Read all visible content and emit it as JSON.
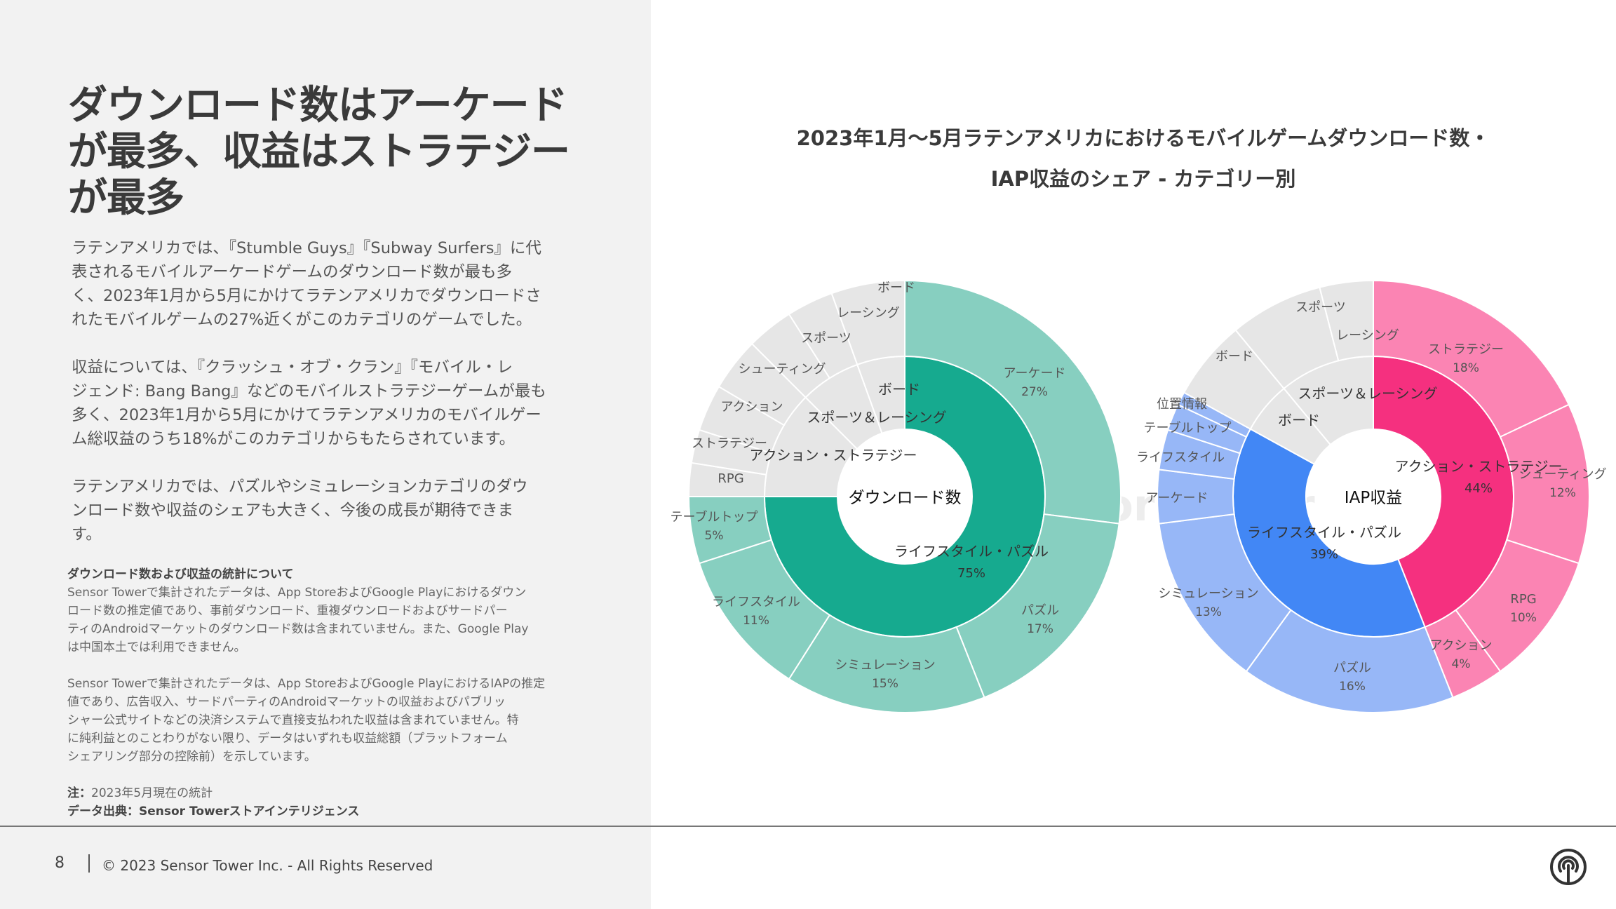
{
  "headline": [
    "ダウンロード数はアーケード",
    "が最多、収益はストラテジー",
    "が最多"
  ],
  "paragraphs": [
    [
      "ラテンアメリカでは、『Stumble Guys』『Subway Surfers』に代",
      "表されるモバイルアーケードゲームのダウンロード数が最も多",
      "く、2023年1月から5月にかけてラテンアメリカでダウンロードさ",
      "れたモバイルゲームの27%近くがこのカテゴリのゲームでした。"
    ],
    [
      "収益については、『クラッシュ・オブ・クラン』『モバイル・レ",
      "ジェンド: Bang Bang』などのモバイルストラテジーゲームが最も",
      "多く、2023年1月から5月にかけてラテンアメリカのモバイルゲー",
      "ム総収益のうち18%がこのカテゴリからもたらされています。"
    ],
    [
      "ラテンアメリカでは、パズルやシミュレーションカテゴリのダウ",
      "ンロード数や収益のシェアも大きく、今後の成長が期待できま",
      "す。"
    ]
  ],
  "notes": {
    "stats_heading": "ダウンロード数および収益の統計について",
    "stats_download": [
      "Sensor Towerで集計されたデータは、App StoreおよびGoogle Playにおけるダウン",
      "ロード数の推定値であり、事前ダウンロード、重複ダウンロードおよびサードパー",
      "ティのAndroidマーケットのダウンロード数は含まれていません。また、Google Play",
      "は中国本土では利用できません。"
    ],
    "stats_revenue": [
      "Sensor Towerで集計されたデータは、App StoreおよびGoogle PlayにおけるIAPの推定",
      "値であり、広告収入、サードパーティのAndroidマーケットの収益およびパブリッ",
      "シャー公式サイトなどの決済システムで直接支払われた収益は含まれていません。特",
      "に純利益とのことわりがない限り、データはいずれも収益総額（プラットフォーム",
      "シェアリング部分の控除前）を示しています。"
    ],
    "note_label": "注：",
    "note_text": "2023年5月現在の統計",
    "source_label": "データ出典：",
    "source_text": "Sensor Towerストアインテリジェンス"
  },
  "chart_title": [
    "2023年1月〜5月ラテンアメリカにおけるモバイルゲームダウンロード数・",
    "IAP収益のシェア - カテゴリー別"
  ],
  "footer": {
    "page": "8",
    "copyright": "© 2023 Sensor Tower Inc. - All Rights Reserved"
  },
  "watermark": "Sensor Tower",
  "colors": {
    "dl_highlight_inner": "#16AA8F",
    "dl_highlight_outer": "#87CFC0",
    "rev_strategy_inner": "#F5307F",
    "rev_strategy_outer": "#FB84B3",
    "rev_puzzle_inner": "#4287F5",
    "rev_puzzle_outer": "#97B7F7",
    "grey": "#E6E6E6",
    "separator": "#ffffff"
  },
  "chart_data": [
    {
      "type": "sunburst",
      "title": "ダウンロード数",
      "inner": [
        {
          "name": "ライフスタイル・パズル",
          "value": 75,
          "label": "75%",
          "highlight": true
        },
        {
          "name": "アクション・ストラテジー",
          "value": 12.5,
          "highlight": false
        },
        {
          "name": "スポーツ＆レーシング",
          "value": 7,
          "highlight": false
        },
        {
          "name": "ボード",
          "value": 5.5,
          "highlight": false
        }
      ],
      "outer": [
        {
          "name": "アーケード",
          "value": 27,
          "label": "27%",
          "highlight": true
        },
        {
          "name": "パズル",
          "value": 17,
          "label": "17%",
          "highlight": true
        },
        {
          "name": "シミュレーション",
          "value": 15,
          "label": "15%",
          "highlight": true
        },
        {
          "name": "ライフスタイル",
          "value": 11,
          "label": "11%",
          "highlight": true
        },
        {
          "name": "テーブルトップ",
          "value": 5,
          "label": "5%",
          "highlight": true
        },
        {
          "name": "RPG",
          "value": 2.5,
          "highlight": false
        },
        {
          "name": "ストラテジー",
          "value": 2.5,
          "highlight": false
        },
        {
          "name": "アクション",
          "value": 3.5,
          "highlight": false
        },
        {
          "name": "シューティング",
          "value": 4,
          "highlight": false
        },
        {
          "name": "スポーツ",
          "value": 3.5,
          "highlight": false
        },
        {
          "name": "レーシング",
          "value": 3.5,
          "highlight": false
        },
        {
          "name": "ボード",
          "value": 5.5,
          "highlight": false
        }
      ]
    },
    {
      "type": "sunburst",
      "title": "IAP収益",
      "inner": [
        {
          "name": "アクション・ストラテジー",
          "value": 44,
          "label": "44%",
          "color": "strategy"
        },
        {
          "name": "ライフスタイル・パズル",
          "value": 39,
          "label": "39%",
          "color": "puzzle"
        },
        {
          "name": "ボード",
          "value": 6,
          "color": "grey"
        },
        {
          "name": "スポーツ＆レーシング",
          "value": 11,
          "color": "grey"
        }
      ],
      "outer": [
        {
          "name": "ストラテジー",
          "value": 18,
          "label": "18%",
          "color": "strategy"
        },
        {
          "name": "シューティング",
          "value": 12,
          "label": "12%",
          "color": "strategy"
        },
        {
          "name": "RPG",
          "value": 10,
          "label": "10%",
          "color": "strategy"
        },
        {
          "name": "アクション",
          "value": 4,
          "label": "4%",
          "color": "strategy"
        },
        {
          "name": "パズル",
          "value": 16,
          "label": "16%",
          "color": "puzzle"
        },
        {
          "name": "シミュレーション",
          "value": 13,
          "label": "13%",
          "color": "puzzle"
        },
        {
          "name": "アーケード",
          "value": 4,
          "color": "puzzle"
        },
        {
          "name": "ライフスタイル",
          "value": 3,
          "color": "puzzle"
        },
        {
          "name": "テーブルトップ",
          "value": 2,
          "color": "puzzle"
        },
        {
          "name": "位置情報",
          "value": 1,
          "color": "puzzle"
        },
        {
          "name": "ボード",
          "value": 6,
          "color": "grey"
        },
        {
          "name": "スポーツ",
          "value": 7,
          "color": "grey"
        },
        {
          "name": "レーシング",
          "value": 4,
          "color": "grey"
        }
      ]
    }
  ]
}
